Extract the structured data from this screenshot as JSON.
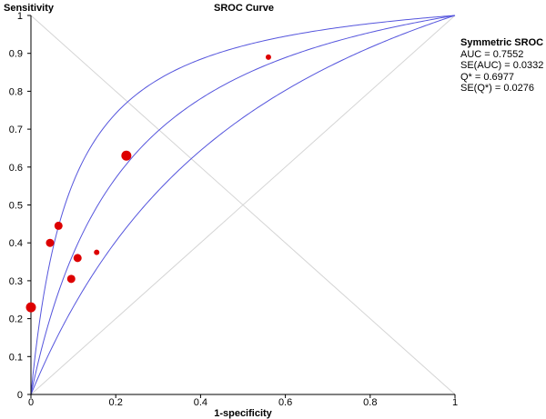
{
  "chart_data": {
    "type": "scatter",
    "title": "SROC Curve",
    "xlabel": "1-specificity",
    "ylabel": "Sensitivity",
    "xlim": [
      0,
      1
    ],
    "ylim": [
      0,
      1
    ],
    "x_ticks": [
      "0",
      "0.2",
      "0.4",
      "0.6",
      "0.8",
      "1"
    ],
    "y_ticks": [
      "0",
      "0.1",
      "0.2",
      "0.3",
      "0.4",
      "0.5",
      "0.6",
      "0.7",
      "0.8",
      "0.9",
      "1"
    ],
    "grid": false,
    "points": [
      {
        "x": 0.0,
        "y": 0.23,
        "size": "large"
      },
      {
        "x": 0.045,
        "y": 0.4,
        "size": "medium"
      },
      {
        "x": 0.065,
        "y": 0.445,
        "size": "medium"
      },
      {
        "x": 0.095,
        "y": 0.305,
        "size": "medium"
      },
      {
        "x": 0.11,
        "y": 0.36,
        "size": "medium"
      },
      {
        "x": 0.155,
        "y": 0.375,
        "size": "small"
      },
      {
        "x": 0.225,
        "y": 0.63,
        "size": "large"
      },
      {
        "x": 0.56,
        "y": 0.89,
        "size": "small"
      }
    ],
    "curves": [
      {
        "role": "upper-bound",
        "q_star": 0.772
      },
      {
        "role": "sroc",
        "q_star": 0.6977
      },
      {
        "role": "lower-bound",
        "q_star": 0.622
      }
    ],
    "reference_lines": [
      "diagonal",
      "anti-diagonal"
    ],
    "colors": {
      "points": "#dd0000",
      "curves": "#5555dd",
      "reference": "#d4d4d4",
      "axes": "#000000"
    }
  },
  "legend": {
    "heading": "Symmetric SROC",
    "lines": [
      "AUC = 0.7552",
      "SE(AUC) = 0.0332",
      "Q* = 0.6977",
      "SE(Q*) = 0.0276"
    ]
  }
}
